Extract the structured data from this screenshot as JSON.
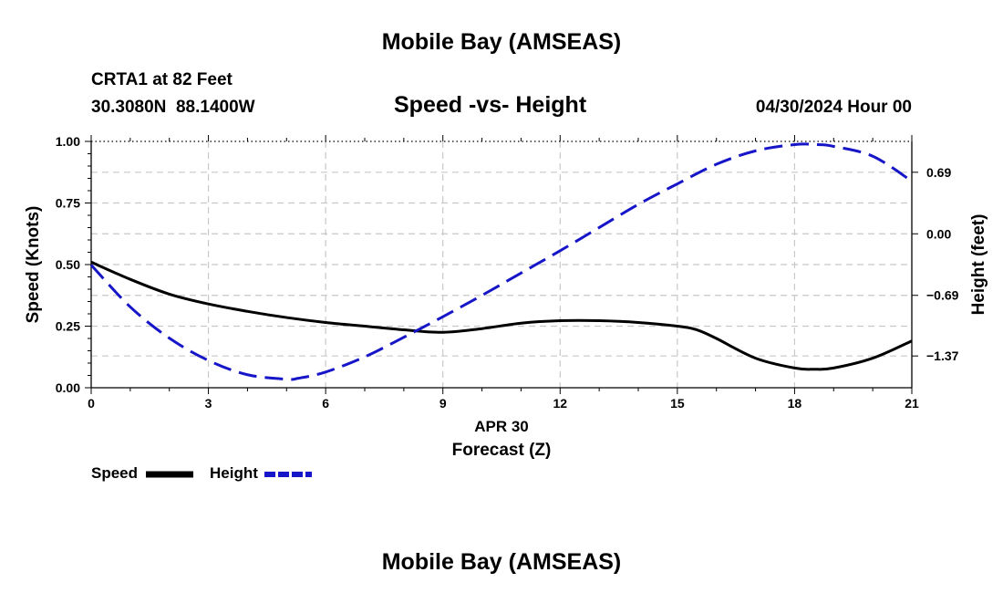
{
  "page_title": "Mobile Bay (AMSEAS)",
  "footer_title": "Mobile Bay (AMSEAS)",
  "station": {
    "name_line": "CRTA1 at 82 Feet",
    "lat": "30.3080N",
    "lon": "88.1400W"
  },
  "datetime": "04/30/2024 Hour 00",
  "chart_data": {
    "type": "line",
    "title": "Speed -vs- Height",
    "xlabel": "Forecast (Z)",
    "xlabel_date": "APR 30",
    "ylabel_left": "Speed (Knots)",
    "ylabel_right": "Height (feet)",
    "xlim": [
      0,
      21
    ],
    "ylim_left": [
      0,
      1.0
    ],
    "ylim_right": [
      -1.726,
      1.036
    ],
    "x_ticks": [
      "0",
      "3",
      "6",
      "9",
      "12",
      "15",
      "18",
      "21"
    ],
    "y_left_ticks": [
      "0.00",
      "0.25",
      "0.50",
      "0.75",
      "1.00"
    ],
    "y_right_ticks": [
      "-1.37",
      "-0.69",
      "0.00",
      "0.69"
    ],
    "y_right_tick_values": [
      -1.37,
      -0.69,
      0.0,
      0.69
    ],
    "grid": true,
    "series": [
      {
        "name": "Speed",
        "axis": "left",
        "color": "#000000",
        "style": "solid",
        "x": [
          0,
          1,
          2,
          3,
          4,
          5,
          6,
          7,
          8,
          9,
          10,
          11,
          12,
          13,
          14,
          15,
          15.5,
          16,
          17,
          18,
          18.5,
          19,
          20,
          21
        ],
        "values": [
          0.51,
          0.44,
          0.38,
          0.34,
          0.31,
          0.285,
          0.265,
          0.25,
          0.235,
          0.225,
          0.24,
          0.262,
          0.272,
          0.272,
          0.265,
          0.25,
          0.235,
          0.2,
          0.12,
          0.08,
          0.075,
          0.08,
          0.12,
          0.19
        ]
      },
      {
        "name": "Height",
        "axis": "right",
        "color": "#1616c8",
        "style": "dashed",
        "x": [
          0,
          1,
          2,
          3,
          4,
          5,
          5.3,
          6,
          7,
          8,
          9,
          10,
          11,
          12,
          13,
          14,
          15,
          16,
          17,
          18,
          18.6,
          19,
          20,
          21
        ],
        "values": [
          -0.35,
          -0.82,
          -1.17,
          -1.42,
          -1.58,
          -1.63,
          -1.62,
          -1.55,
          -1.38,
          -1.16,
          -0.93,
          -0.69,
          -0.44,
          -0.19,
          0.07,
          0.33,
          0.56,
          0.78,
          0.93,
          1.0,
          1.0,
          0.98,
          0.87,
          0.59
        ]
      }
    ],
    "legend": [
      {
        "label": "Speed",
        "color": "#000000",
        "style": "solid"
      },
      {
        "label": "Height",
        "color": "#1616c8",
        "style": "dashed"
      }
    ],
    "legend_position": "bottom-left"
  }
}
